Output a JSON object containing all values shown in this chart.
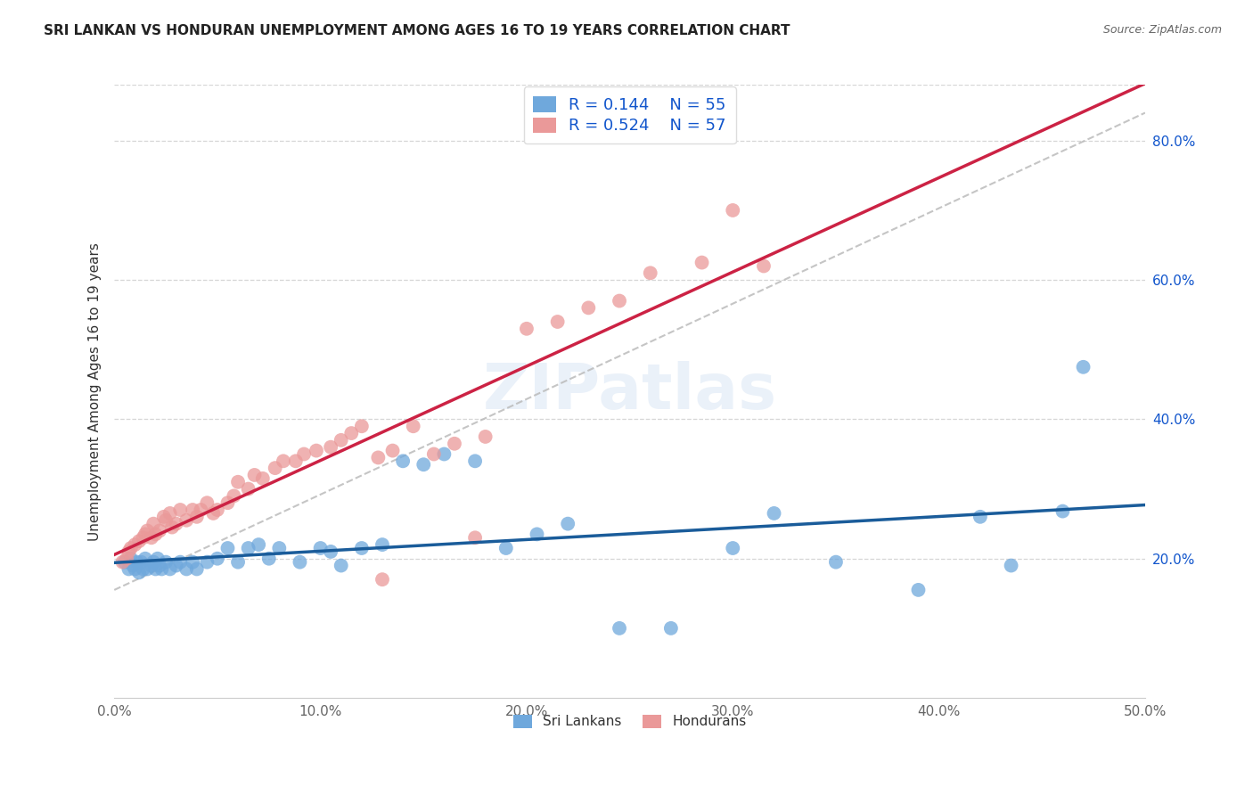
{
  "title": "SRI LANKAN VS HONDURAN UNEMPLOYMENT AMONG AGES 16 TO 19 YEARS CORRELATION CHART",
  "source": "Source: ZipAtlas.com",
  "ylabel": "Unemployment Among Ages 16 to 19 years",
  "xlim": [
    0.0,
    0.5
  ],
  "ylim": [
    0.0,
    0.88
  ],
  "xtick_labels": [
    "0.0%",
    "10.0%",
    "20.0%",
    "30.0%",
    "40.0%",
    "50.0%"
  ],
  "xtick_vals": [
    0.0,
    0.1,
    0.2,
    0.3,
    0.4,
    0.5
  ],
  "ytick_labels": [
    "20.0%",
    "40.0%",
    "60.0%",
    "80.0%"
  ],
  "ytick_vals": [
    0.2,
    0.4,
    0.6,
    0.8
  ],
  "sri_lanka_color": "#6fa8dc",
  "honduran_color": "#ea9999",
  "sri_lanka_line_color": "#1a5c9a",
  "honduran_line_color": "#cc2244",
  "sri_lanka_R": "0.144",
  "sri_lanka_N": "55",
  "honduran_R": "0.524",
  "honduran_N": "57",
  "legend_text_color": "#1155cc",
  "watermark": "ZIPatlas",
  "diag_line_color": "#bbbbbb",
  "grid_color": "#cccccc",
  "title_fontsize": 11,
  "tick_fontsize": 11,
  "legend_fontsize": 13,
  "sri_x": [
    0.005,
    0.007,
    0.008,
    0.009,
    0.01,
    0.011,
    0.012,
    0.013,
    0.014,
    0.015,
    0.016,
    0.018,
    0.019,
    0.02,
    0.021,
    0.022,
    0.023,
    0.025,
    0.027,
    0.03,
    0.032,
    0.035,
    0.038,
    0.04,
    0.045,
    0.05,
    0.055,
    0.06,
    0.065,
    0.07,
    0.075,
    0.08,
    0.09,
    0.1,
    0.105,
    0.11,
    0.12,
    0.13,
    0.14,
    0.15,
    0.16,
    0.175,
    0.19,
    0.205,
    0.22,
    0.245,
    0.27,
    0.3,
    0.32,
    0.35,
    0.39,
    0.42,
    0.435,
    0.46,
    0.47
  ],
  "sri_y": [
    0.195,
    0.185,
    0.2,
    0.19,
    0.185,
    0.195,
    0.18,
    0.195,
    0.185,
    0.2,
    0.185,
    0.19,
    0.195,
    0.185,
    0.2,
    0.19,
    0.185,
    0.195,
    0.185,
    0.19,
    0.195,
    0.185,
    0.195,
    0.185,
    0.195,
    0.2,
    0.215,
    0.195,
    0.215,
    0.22,
    0.2,
    0.215,
    0.195,
    0.215,
    0.21,
    0.19,
    0.215,
    0.22,
    0.34,
    0.335,
    0.35,
    0.34,
    0.215,
    0.235,
    0.25,
    0.1,
    0.1,
    0.215,
    0.265,
    0.195,
    0.155,
    0.26,
    0.19,
    0.268,
    0.475
  ],
  "hon_x": [
    0.004,
    0.006,
    0.007,
    0.008,
    0.01,
    0.012,
    0.014,
    0.015,
    0.016,
    0.018,
    0.019,
    0.02,
    0.022,
    0.024,
    0.025,
    0.027,
    0.028,
    0.03,
    0.032,
    0.035,
    0.038,
    0.04,
    0.042,
    0.045,
    0.048,
    0.05,
    0.055,
    0.058,
    0.06,
    0.065,
    0.068,
    0.072,
    0.078,
    0.082,
    0.088,
    0.092,
    0.098,
    0.105,
    0.11,
    0.115,
    0.12,
    0.128,
    0.135,
    0.145,
    0.155,
    0.165,
    0.18,
    0.2,
    0.215,
    0.23,
    0.245,
    0.26,
    0.285,
    0.3,
    0.315,
    0.13,
    0.175
  ],
  "hon_y": [
    0.195,
    0.2,
    0.21,
    0.215,
    0.22,
    0.225,
    0.23,
    0.235,
    0.24,
    0.23,
    0.25,
    0.235,
    0.24,
    0.26,
    0.255,
    0.265,
    0.245,
    0.25,
    0.27,
    0.255,
    0.27,
    0.26,
    0.27,
    0.28,
    0.265,
    0.27,
    0.28,
    0.29,
    0.31,
    0.3,
    0.32,
    0.315,
    0.33,
    0.34,
    0.34,
    0.35,
    0.355,
    0.36,
    0.37,
    0.38,
    0.39,
    0.345,
    0.355,
    0.39,
    0.35,
    0.365,
    0.375,
    0.53,
    0.54,
    0.56,
    0.57,
    0.61,
    0.625,
    0.7,
    0.62,
    0.17,
    0.23
  ]
}
